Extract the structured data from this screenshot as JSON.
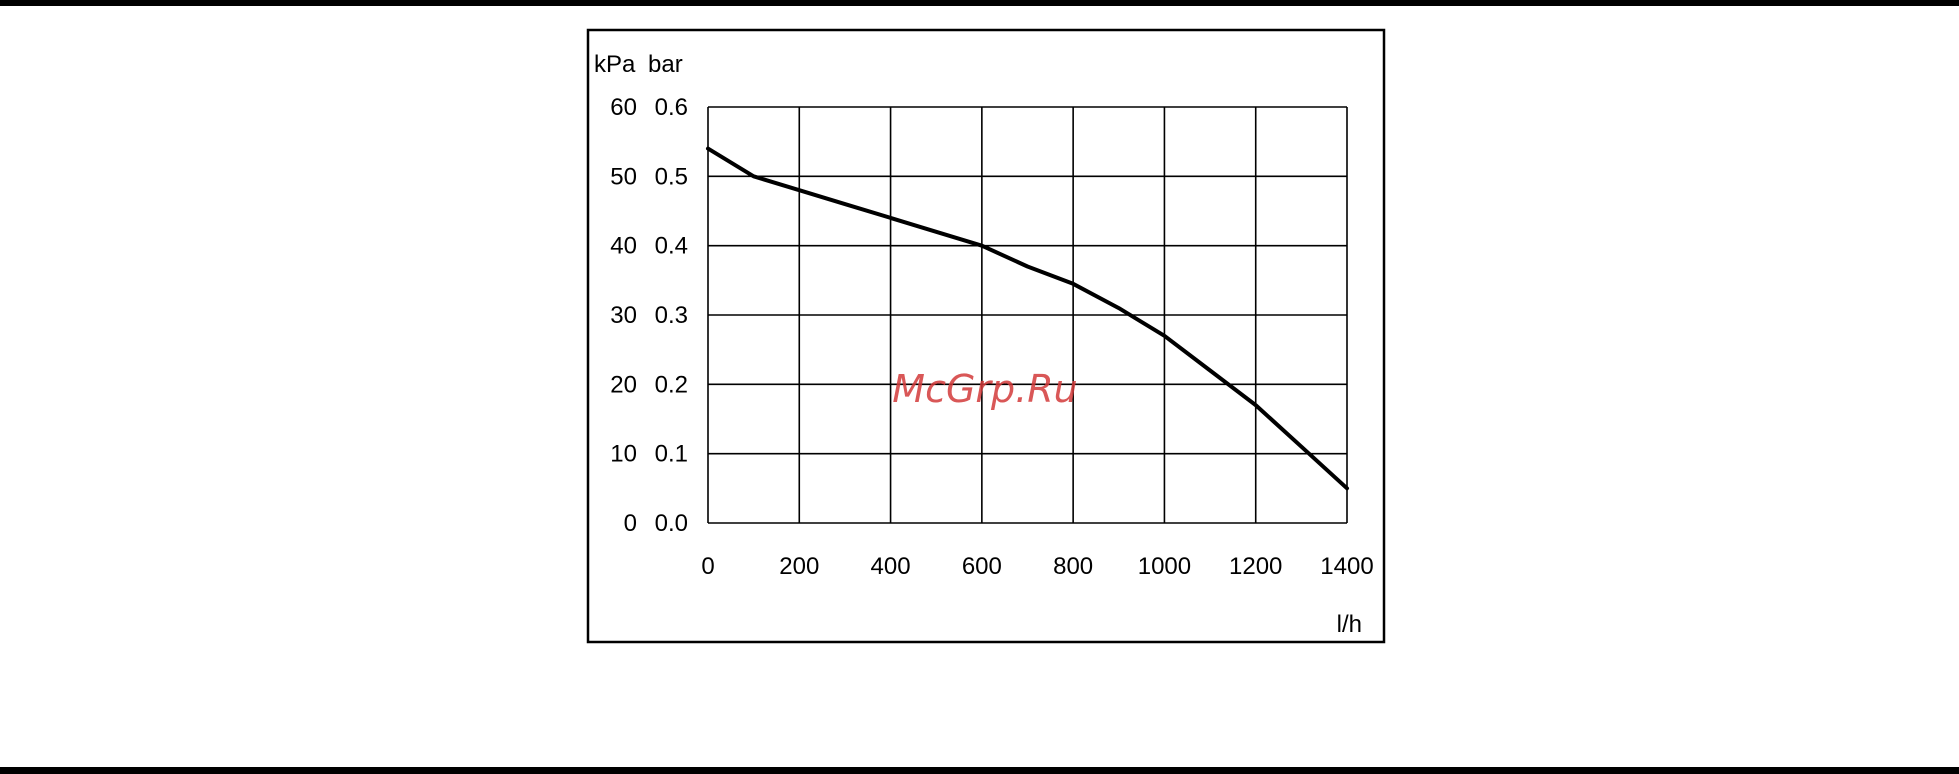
{
  "page": {
    "rule_color": "#000000"
  },
  "watermark": {
    "text": "McGrp.Ru",
    "color": "#d23a3a"
  },
  "chart_data": {
    "type": "line",
    "title": "",
    "xlabel": "l/h",
    "ylabel_primary": "kPa",
    "ylabel_secondary": "bar",
    "xlim": [
      0,
      1400
    ],
    "ylim_primary": [
      0,
      60
    ],
    "ylim_secondary": [
      0.0,
      0.6
    ],
    "x_ticks": [
      "0",
      "200",
      "400",
      "600",
      "800",
      "1000",
      "1200",
      "1400"
    ],
    "y_ticks_primary": [
      "0",
      "10",
      "20",
      "30",
      "40",
      "50",
      "60"
    ],
    "y_ticks_secondary": [
      "0.0",
      "0.1",
      "0.2",
      "0.3",
      "0.4",
      "0.5",
      "0.6"
    ],
    "grid": true,
    "legend": "none",
    "line_color": "#000000",
    "series": [
      {
        "x": [
          0,
          100,
          200,
          300,
          400,
          500,
          600,
          700,
          800,
          900,
          1000,
          1100,
          1200,
          1300,
          1400
        ],
        "y": [
          54,
          50,
          48,
          46,
          44,
          42,
          40,
          37,
          34.5,
          31,
          27,
          22,
          17,
          11,
          5
        ]
      }
    ]
  }
}
